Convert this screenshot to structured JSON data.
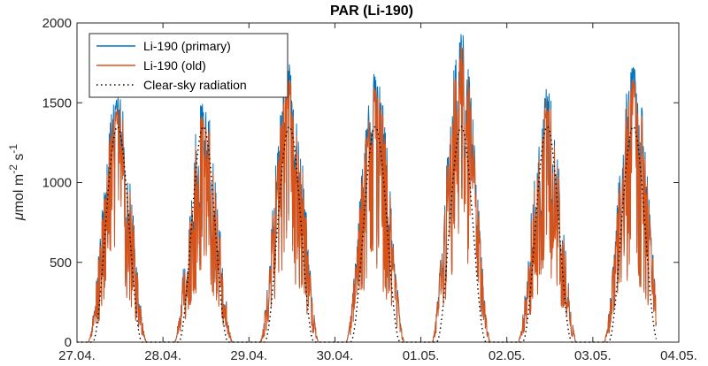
{
  "chart_data": {
    "type": "line",
    "title": "PAR (Li-190)",
    "ylabel_parts": {
      "mu": "μ",
      "main": "mol m",
      "exp1": "-2",
      "s": " s",
      "exp2": "-1"
    },
    "xlabel": "",
    "ylim": [
      0,
      2000
    ],
    "yticks": [
      0,
      500,
      1000,
      1500,
      2000
    ],
    "xlim": [
      0,
      7
    ],
    "xticks": [
      0,
      1,
      2,
      3,
      4,
      5,
      6,
      7
    ],
    "xtick_labels": [
      "27.04.",
      "28.04.",
      "29.04.",
      "30.04.",
      "01.05.",
      "02.05.",
      "03.05.",
      "04.05."
    ],
    "legend": {
      "placement": "top-left",
      "entries": [
        "Li-190 (primary)",
        "Li-190 (old)",
        "Clear-sky radiation"
      ]
    },
    "colors": {
      "primary": "#0072bd",
      "old": "#d95319",
      "clearsky": "#000000"
    },
    "clear_sky_peak": 1350,
    "daily_peaks": [
      {
        "day": "27.04.",
        "primary_max": 1540,
        "old_max": 1500
      },
      {
        "day": "28.04.",
        "primary_max": 1520,
        "old_max": 1470
      },
      {
        "day": "29.04.",
        "primary_max": 1760,
        "old_max": 1700
      },
      {
        "day": "30.04.",
        "primary_max": 1680,
        "old_max": 1620
      },
      {
        "day": "01.05.",
        "primary_max": 1930,
        "old_max": 1880
      },
      {
        "day": "02.05.",
        "primary_max": 1590,
        "old_max": 1540
      },
      {
        "day": "03.05.",
        "primary_max": 1740,
        "old_max": 1690
      }
    ]
  }
}
